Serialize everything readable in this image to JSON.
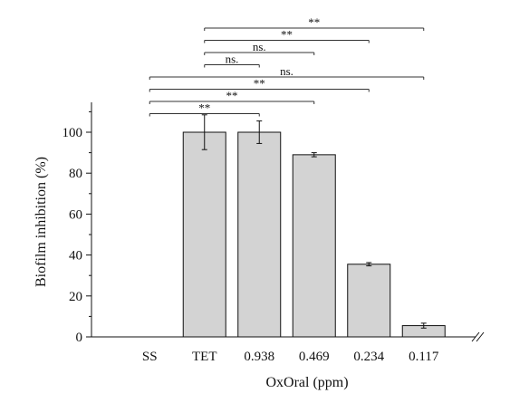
{
  "chart_data": {
    "type": "bar",
    "categories": [
      "SS",
      "TET",
      "0.938",
      "0.469",
      "0.234",
      "0.117"
    ],
    "values": [
      0,
      100,
      100,
      89,
      35.5,
      5.5
    ],
    "errors": [
      0,
      8.5,
      5.5,
      1.0,
      0.8,
      1.2
    ],
    "xlabel": "OxOral (ppm)",
    "ylabel": "Biofilm inhibition (%)",
    "ylim": [
      0,
      110
    ],
    "yticks": [
      0,
      20,
      40,
      60,
      80,
      100
    ],
    "yminor_step": 10,
    "grid": false,
    "axis_break": true,
    "bar_color": "#d3d3d3",
    "significance": [
      {
        "from": "TET",
        "to": "0.117",
        "label": "**"
      },
      {
        "from": "TET",
        "to": "0.234",
        "label": "**"
      },
      {
        "from": "TET",
        "to": "0.469",
        "label": "ns."
      },
      {
        "from": "TET",
        "to": "0.938",
        "label": "ns."
      },
      {
        "from": "SS",
        "to": "0.117",
        "label": "ns."
      },
      {
        "from": "SS",
        "to": "0.234",
        "label": "**"
      },
      {
        "from": "SS",
        "to": "0.469",
        "label": "**"
      },
      {
        "from": "SS",
        "to": "0.938",
        "label": "**"
      }
    ]
  }
}
